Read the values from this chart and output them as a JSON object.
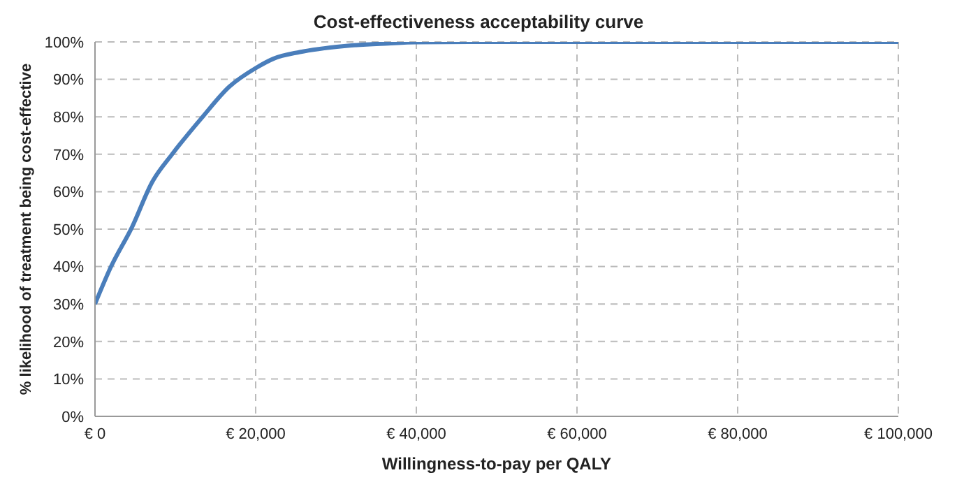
{
  "chart_data": {
    "type": "line",
    "title": "Cost-effectiveness acceptability curve",
    "xlabel": "Willingness-to-pay per QALY",
    "ylabel": "% likelihood of treatment being cost-effective",
    "x": [
      0,
      2000,
      4600,
      7100,
      9600,
      13400,
      16700,
      20000,
      22200,
      25500,
      31000,
      36500,
      40000,
      50000,
      60000,
      80000,
      100000
    ],
    "series": [
      {
        "color": "#4a7ebb",
        "values": [
          30,
          40,
          50.5,
          62.5,
          70,
          80,
          88,
          93,
          95.5,
          97.3,
          98.9,
          99.6,
          99.9,
          100,
          100,
          100,
          100
        ]
      }
    ],
    "xlim": [
      0,
      100000
    ],
    "xticks": [
      {
        "value": 0,
        "label": "€ 0"
      },
      {
        "value": 20000,
        "label": "€ 20,000"
      },
      {
        "value": 40000,
        "label": "€ 40,000"
      },
      {
        "value": 60000,
        "label": "€ 60,000"
      },
      {
        "value": 80000,
        "label": "€ 80,000"
      },
      {
        "value": 100000,
        "label": "€ 100,000"
      }
    ],
    "ylim": [
      0,
      100
    ],
    "yticks": [
      {
        "value": 0,
        "label": "0%"
      },
      {
        "value": 10,
        "label": "10%"
      },
      {
        "value": 20,
        "label": "20%"
      },
      {
        "value": 30,
        "label": "30%"
      },
      {
        "value": 40,
        "label": "40%"
      },
      {
        "value": 50,
        "label": "50%"
      },
      {
        "value": 60,
        "label": "60%"
      },
      {
        "value": 70,
        "label": "70%"
      },
      {
        "value": 80,
        "label": "80%"
      },
      {
        "value": 90,
        "label": "90%"
      },
      {
        "value": 100,
        "label": "100%"
      }
    ],
    "grid": true,
    "marker": "none",
    "line_style": "solid"
  }
}
